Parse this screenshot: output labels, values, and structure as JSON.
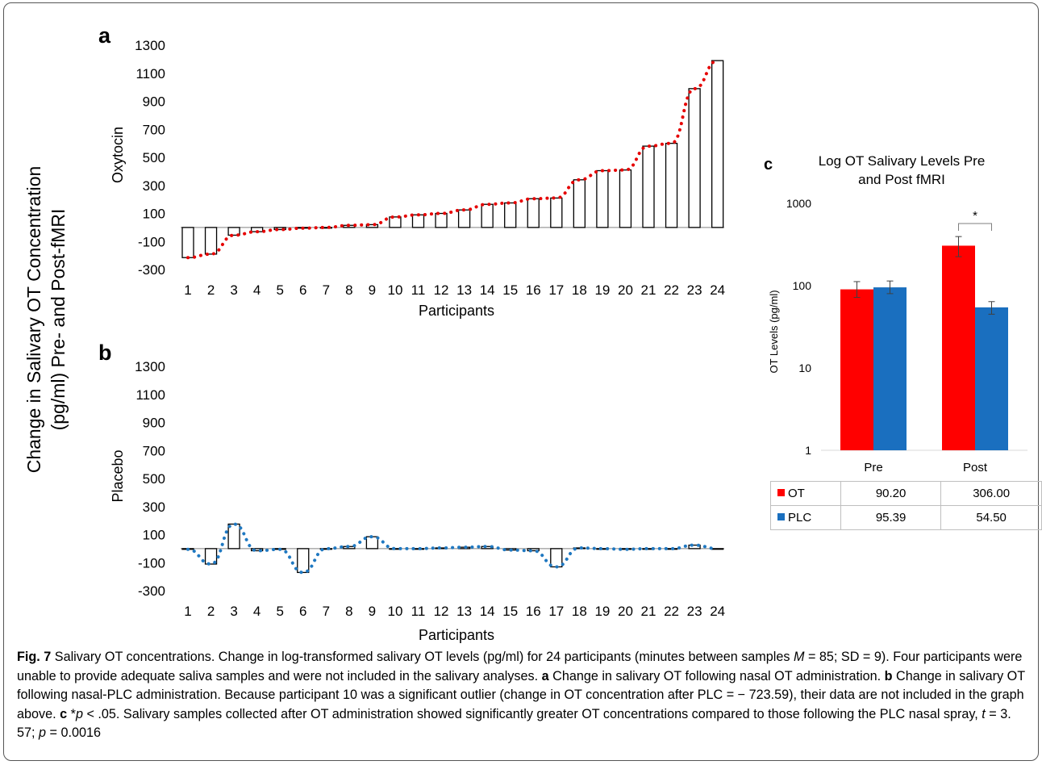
{
  "figure": {
    "y_axis_title_lines": [
      "Change in Salivary OT Concentration",
      "(pg/ml) Pre- and Post-fMRI"
    ],
    "caption": {
      "fig_label": "Fig. 7",
      "text_1": " Salivary OT concentrations. Change in log-transformed salivary OT levels (pg/ml) for 24 participants (minutes between samples ",
      "m_symbol": "M",
      "text_2": " = 85; SD = 9). Four participants were unable to provide adequate saliva samples and were not included in the salivary analyses. ",
      "a_label": "a",
      "text_a": " Change in salivary OT following nasal OT administration. ",
      "b_label": "b",
      "text_b": " Change in salivary OT following nasal-PLC administration. Because participant 10 was a significant outlier (change in OT concentration after PLC = − 723.59), their data are not included in the graph above. ",
      "c_label": "c",
      "text_c1": " *",
      "p_symbol": "p",
      "text_c2": " < .05. Salivary samples collected after OT administration showed significantly greater OT concentrations compared to those following the PLC nasal spray, ",
      "t_symbol": "t",
      "text_c3": " = 3. 57; ",
      "p_symbol2": "p",
      "text_c4": " = 0.0016"
    }
  },
  "chart_data": [
    {
      "panel": "a",
      "type": "bar",
      "series_label": "Oxytocin",
      "series_color": "#e60000",
      "xlabel": "Participants",
      "categories": [
        "1",
        "2",
        "3",
        "4",
        "5",
        "6",
        "7",
        "8",
        "9",
        "10",
        "11",
        "12",
        "13",
        "14",
        "15",
        "16",
        "17",
        "18",
        "19",
        "20",
        "21",
        "22",
        "23",
        "24"
      ],
      "values": [
        -215,
        -190,
        -55,
        -30,
        -15,
        -5,
        0,
        15,
        20,
        75,
        90,
        100,
        125,
        165,
        175,
        205,
        210,
        340,
        405,
        410,
        580,
        600,
        990,
        1190
      ],
      "ylim": [
        -300,
        1300
      ],
      "yticks": [
        "1300",
        "1100",
        "900",
        "700",
        "500",
        "300",
        "100",
        "-100",
        "-300"
      ]
    },
    {
      "panel": "b",
      "type": "bar",
      "series_label": "Placebo",
      "series_color": "#1f78c1",
      "xlabel": "Participants",
      "categories": [
        "1",
        "2",
        "3",
        "4",
        "5",
        "6",
        "7",
        "8",
        "9",
        "10",
        "11",
        "12",
        "13",
        "14",
        "15",
        "16",
        "17",
        "18",
        "19",
        "20",
        "21",
        "22",
        "23",
        "24"
      ],
      "values": [
        -5,
        -110,
        175,
        -15,
        -5,
        -170,
        0,
        15,
        85,
        0,
        0,
        5,
        10,
        15,
        -10,
        -15,
        -130,
        5,
        0,
        -5,
        0,
        0,
        25,
        0
      ],
      "ylim": [
        -300,
        1300
      ],
      "yticks": [
        "1300",
        "1100",
        "900",
        "700",
        "500",
        "300",
        "100",
        "-100",
        "-300"
      ]
    },
    {
      "panel": "c",
      "type": "bar",
      "title_lines": [
        "Log OT Salivary Levels Pre",
        "and Post fMRI"
      ],
      "ylabel": "OT Levels (pg/ml)",
      "y_scale": "log",
      "ylim": [
        1,
        1000
      ],
      "yticks": [
        "1000",
        "100",
        "10",
        "1"
      ],
      "categories": [
        "Pre",
        "Post"
      ],
      "series": [
        {
          "name": "OT",
          "color": "#ff0000",
          "values": [
            90.2,
            306.0
          ],
          "errors": [
            [
              72,
              112
            ],
            [
              225,
              395
            ]
          ]
        },
        {
          "name": "PLC",
          "color": "#1a6fbf",
          "values": [
            95.39,
            54.5
          ],
          "errors": [
            [
              80,
              114
            ],
            [
              45,
              64
            ]
          ]
        }
      ],
      "table_values": [
        [
          "90.20",
          "306.00"
        ],
        [
          "95.39",
          "54.50"
        ]
      ],
      "significance": "*"
    }
  ]
}
